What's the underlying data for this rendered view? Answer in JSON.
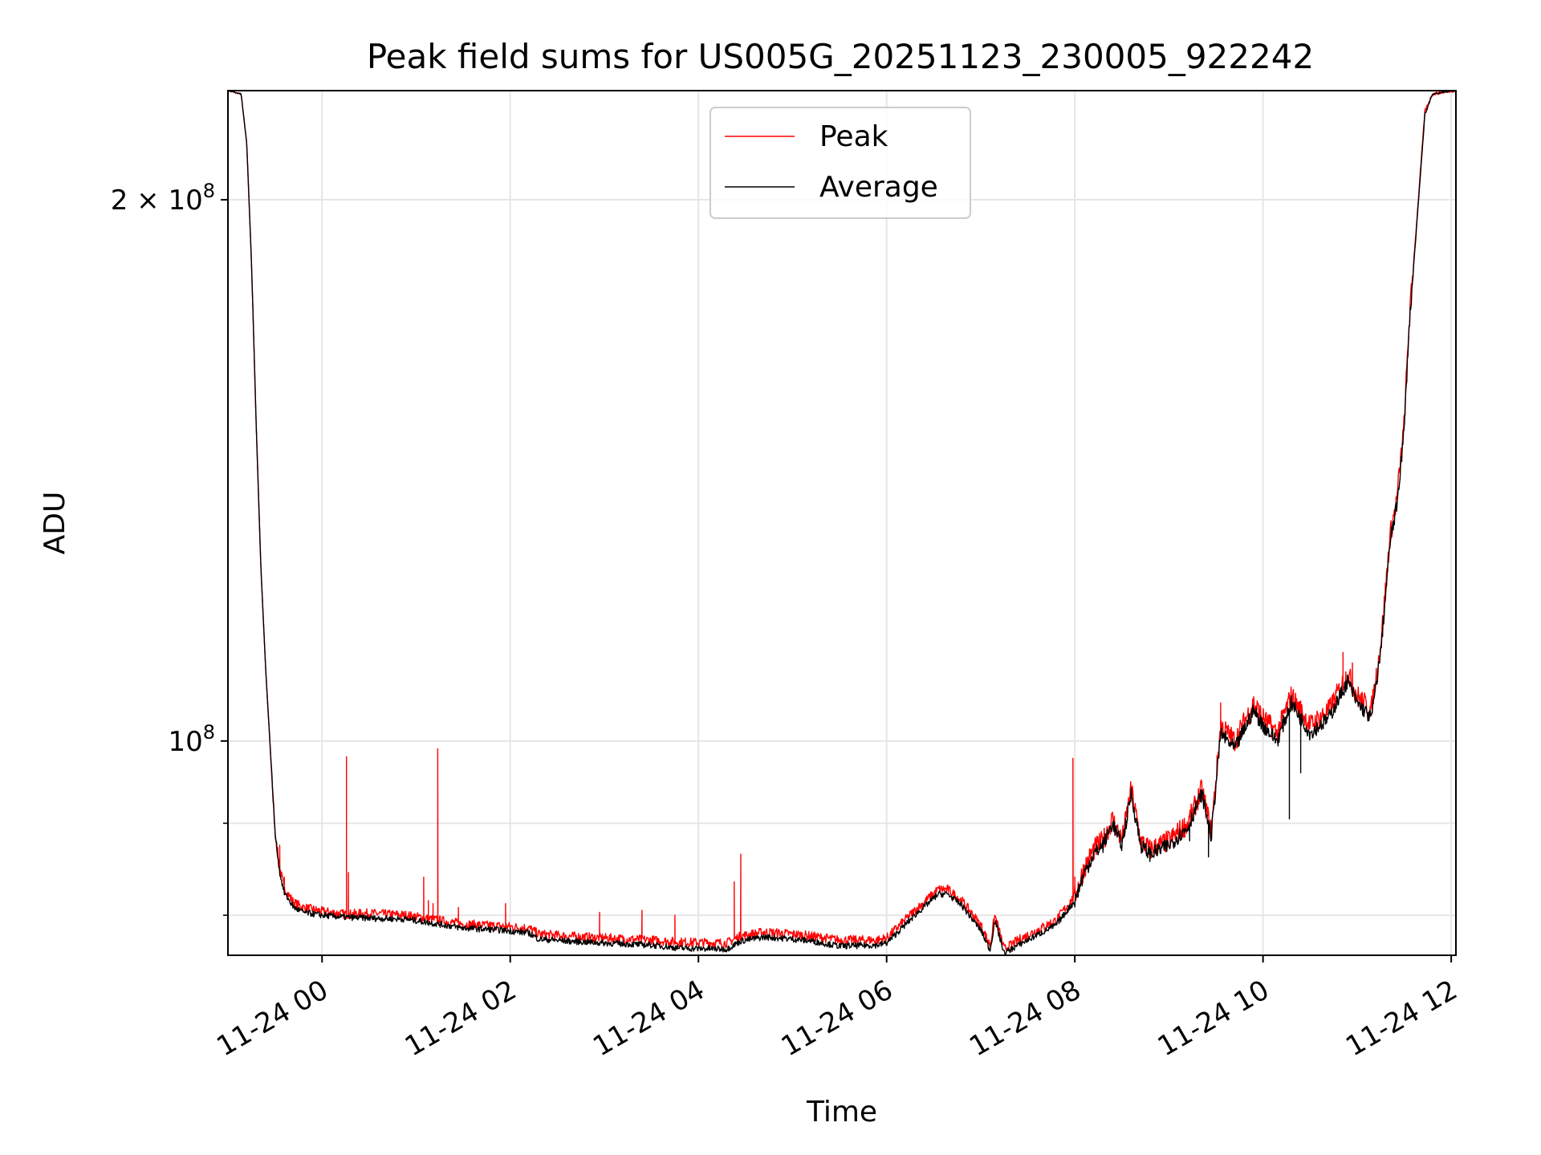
{
  "chart_data": {
    "type": "line",
    "title": "Peak field sums for US005G_20251123_230005_922242",
    "xlabel": "Time",
    "ylabel": "ADU",
    "yscale": "log",
    "grid": true,
    "legend_position": "upper-center",
    "xlim_hours": [
      -1.0,
      12.05
    ],
    "ylim": [
      76000000,
      230000000
    ],
    "x_ticks": [
      {
        "hour": 0,
        "label": "11-24 00"
      },
      {
        "hour": 2,
        "label": "11-24 02"
      },
      {
        "hour": 4,
        "label": "11-24 04"
      },
      {
        "hour": 6,
        "label": "11-24 06"
      },
      {
        "hour": 8,
        "label": "11-24 08"
      },
      {
        "hour": 10,
        "label": "11-24 10"
      },
      {
        "hour": 12,
        "label": "11-24 12"
      }
    ],
    "y_major_ticks": [
      {
        "value": 100000000,
        "mantissa": "",
        "base": "10",
        "exp": "8"
      },
      {
        "value": 200000000,
        "mantissa": "2 × ",
        "base": "10",
        "exp": "8"
      }
    ],
    "y_minor_ticks": [
      80000000,
      90000000
    ],
    "series": [
      {
        "name": "Peak",
        "color": "#ff0000",
        "points": [
          [
            -1.0,
            230000000
          ],
          [
            -0.86,
            229000000
          ],
          [
            -0.8,
            215000000
          ],
          [
            -0.75,
            185000000
          ],
          [
            -0.7,
            150000000
          ],
          [
            -0.65,
            125000000
          ],
          [
            -0.6,
            110000000
          ],
          [
            -0.55,
            99000000
          ],
          [
            -0.5,
            89000000
          ],
          [
            -0.45,
            85000000
          ],
          [
            -0.4,
            82800000
          ],
          [
            -0.3,
            81300000
          ],
          [
            -0.2,
            80800000
          ],
          [
            0.0,
            80400000
          ],
          [
            0.25,
            80100000
          ],
          [
            0.5,
            80200000
          ],
          [
            0.9,
            80000000
          ],
          [
            1.3,
            79400000
          ],
          [
            1.5,
            79100000
          ],
          [
            1.9,
            78900000
          ],
          [
            2.2,
            78700000
          ],
          [
            2.3,
            78100000
          ],
          [
            2.6,
            77900000
          ],
          [
            3.0,
            77700000
          ],
          [
            3.5,
            77500000
          ],
          [
            3.8,
            77300000
          ],
          [
            4.3,
            77200000
          ],
          [
            4.45,
            77900000
          ],
          [
            4.7,
            78300000
          ],
          [
            5.0,
            78100000
          ],
          [
            5.2,
            77900000
          ],
          [
            5.5,
            77500000
          ],
          [
            5.9,
            77500000
          ],
          [
            6.0,
            77700000
          ],
          [
            6.3,
            80500000
          ],
          [
            6.55,
            82700000
          ],
          [
            6.65,
            82700000
          ],
          [
            6.8,
            81500000
          ],
          [
            7.0,
            79000000
          ],
          [
            7.1,
            77000000
          ],
          [
            7.15,
            80000000
          ],
          [
            7.25,
            76600000
          ],
          [
            7.4,
            77500000
          ],
          [
            7.6,
            78500000
          ],
          [
            7.8,
            79500000
          ],
          [
            8.0,
            82000000
          ],
          [
            8.1,
            85000000
          ],
          [
            8.2,
            87000000
          ],
          [
            8.3,
            88000000
          ],
          [
            8.4,
            90500000
          ],
          [
            8.5,
            88000000
          ],
          [
            8.6,
            94000000
          ],
          [
            8.7,
            88000000
          ],
          [
            8.8,
            87000000
          ],
          [
            9.0,
            88000000
          ],
          [
            9.2,
            90000000
          ],
          [
            9.35,
            94000000
          ],
          [
            9.45,
            89000000
          ],
          [
            9.55,
            102000000
          ],
          [
            9.7,
            100000000
          ],
          [
            9.9,
            105000000
          ],
          [
            10.0,
            103000000
          ],
          [
            10.15,
            101000000
          ],
          [
            10.3,
            106000000
          ],
          [
            10.5,
            102000000
          ],
          [
            10.7,
            104000000
          ],
          [
            10.9,
            109000000
          ],
          [
            11.0,
            106000000
          ],
          [
            11.15,
            104000000
          ],
          [
            11.25,
            113000000
          ],
          [
            11.35,
            130000000
          ],
          [
            11.42,
            136000000
          ],
          [
            11.5,
            150000000
          ],
          [
            11.55,
            170000000
          ],
          [
            11.65,
            200000000
          ],
          [
            11.72,
            224000000
          ],
          [
            11.8,
            229000000
          ],
          [
            12.0,
            230000000
          ]
        ]
      },
      {
        "name": "Average",
        "color": "#000000",
        "points": [
          [
            -1.0,
            230000000
          ],
          [
            -0.86,
            229000000
          ],
          [
            -0.8,
            215000000
          ],
          [
            -0.75,
            185000000
          ],
          [
            -0.7,
            150000000
          ],
          [
            -0.65,
            125000000
          ],
          [
            -0.6,
            110000000
          ],
          [
            -0.55,
            99000000
          ],
          [
            -0.5,
            89000000
          ],
          [
            -0.45,
            84500000
          ],
          [
            -0.4,
            82300000
          ],
          [
            -0.3,
            80800000
          ],
          [
            -0.2,
            80300000
          ],
          [
            0.0,
            80000000
          ],
          [
            0.25,
            79800000
          ],
          [
            0.5,
            79700000
          ],
          [
            0.9,
            79600000
          ],
          [
            1.3,
            79000000
          ],
          [
            1.5,
            78700000
          ],
          [
            1.9,
            78500000
          ],
          [
            2.2,
            78200000
          ],
          [
            2.3,
            77600000
          ],
          [
            2.6,
            77400000
          ],
          [
            3.0,
            77200000
          ],
          [
            3.5,
            77000000
          ],
          [
            3.8,
            76700000
          ],
          [
            4.3,
            76600000
          ],
          [
            4.45,
            77400000
          ],
          [
            4.7,
            77800000
          ],
          [
            5.0,
            77600000
          ],
          [
            5.2,
            77400000
          ],
          [
            5.5,
            76900000
          ],
          [
            5.9,
            77000000
          ],
          [
            6.0,
            77200000
          ],
          [
            6.3,
            80000000
          ],
          [
            6.55,
            82200000
          ],
          [
            6.65,
            82200000
          ],
          [
            6.8,
            81000000
          ],
          [
            7.0,
            78500000
          ],
          [
            7.1,
            76500000
          ],
          [
            7.15,
            79500000
          ],
          [
            7.25,
            76200000
          ],
          [
            7.4,
            77000000
          ],
          [
            7.6,
            78000000
          ],
          [
            7.8,
            79000000
          ],
          [
            8.0,
            81500000
          ],
          [
            8.1,
            84400000
          ],
          [
            8.2,
            86500000
          ],
          [
            8.3,
            87500000
          ],
          [
            8.4,
            90000000
          ],
          [
            8.5,
            87500000
          ],
          [
            8.6,
            93500000
          ],
          [
            8.7,
            87500000
          ],
          [
            8.8,
            86500000
          ],
          [
            9.0,
            87500000
          ],
          [
            9.2,
            89500000
          ],
          [
            9.35,
            93500000
          ],
          [
            9.45,
            88500000
          ],
          [
            9.55,
            101000000
          ],
          [
            9.7,
            99000000
          ],
          [
            9.9,
            104000000
          ],
          [
            10.0,
            102000000
          ],
          [
            10.15,
            100000000
          ],
          [
            10.3,
            105000000
          ],
          [
            10.5,
            101000000
          ],
          [
            10.7,
            103000000
          ],
          [
            10.9,
            108000000
          ],
          [
            11.0,
            105000000
          ],
          [
            11.15,
            103000000
          ],
          [
            11.25,
            112000000
          ],
          [
            11.35,
            129000000
          ],
          [
            11.42,
            135000000
          ],
          [
            11.5,
            149000000
          ],
          [
            11.55,
            169000000
          ],
          [
            11.65,
            199000000
          ],
          [
            11.72,
            223000000
          ],
          [
            11.8,
            229000000
          ],
          [
            12.0,
            230000000
          ]
        ]
      }
    ],
    "peak_spikes": [
      [
        -0.45,
        87500000
      ],
      [
        -0.4,
        84000000
      ],
      [
        0.26,
        98000000
      ],
      [
        0.28,
        84500000
      ],
      [
        1.08,
        84000000
      ],
      [
        1.23,
        99000000
      ],
      [
        1.13,
        81500000
      ],
      [
        1.18,
        81200000
      ],
      [
        1.45,
        80800000
      ],
      [
        1.95,
        81200000
      ],
      [
        2.95,
        80300000
      ],
      [
        3.4,
        80500000
      ],
      [
        3.75,
        80000000
      ],
      [
        4.38,
        83500000
      ],
      [
        4.45,
        86500000
      ],
      [
        7.98,
        97800000
      ],
      [
        8.0,
        84000000
      ],
      [
        9.55,
        105000000
      ],
      [
        10.35,
        105000000
      ],
      [
        10.85,
        112000000
      ],
      [
        10.95,
        110500000
      ],
      [
        11.36,
        131000000
      ]
    ],
    "average_dips": [
      [
        10.28,
        90500000
      ],
      [
        10.4,
        96000000
      ],
      [
        9.42,
        86200000
      ],
      [
        9.22,
        88000000
      ]
    ],
    "noise": {
      "peak_amplitude": 0.006,
      "average_amplitude": 0.004,
      "seed": 7
    }
  }
}
